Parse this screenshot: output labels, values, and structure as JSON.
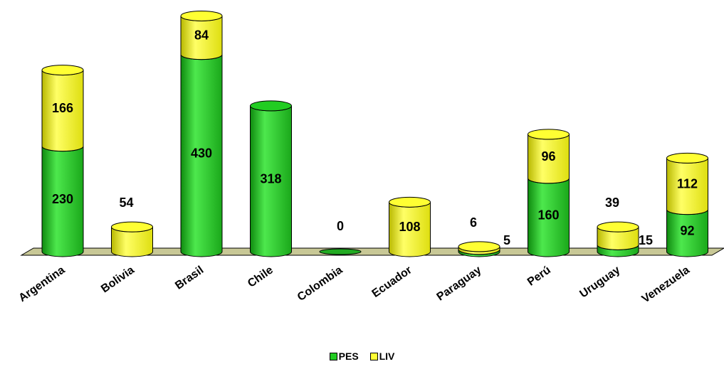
{
  "chart_data": {
    "type": "bar",
    "stacked": true,
    "style": "3d-cylinder",
    "categories": [
      "Argentina",
      "Bolivia",
      "Brasil",
      "Chile",
      "Colombia",
      "Ecuador",
      "Paraguay",
      "Perú",
      "Uruguay",
      "Venezuela"
    ],
    "series": [
      {
        "name": "PES",
        "color": "#22cc22",
        "values": [
          230,
          0,
          430,
          318,
          0,
          0,
          5,
          160,
          15,
          92
        ]
      },
      {
        "name": "LIV",
        "color": "#ffff33",
        "values": [
          166,
          54,
          84,
          0,
          0,
          108,
          6,
          96,
          39,
          112
        ]
      }
    ],
    "data_labels": [
      {
        "category": "Argentina",
        "series": "PES",
        "text": "230"
      },
      {
        "category": "Argentina",
        "series": "LIV",
        "text": "166"
      },
      {
        "category": "Bolivia",
        "series": "LIV",
        "text": "54"
      },
      {
        "category": "Brasil",
        "series": "PES",
        "text": "430"
      },
      {
        "category": "Brasil",
        "series": "LIV",
        "text": "84"
      },
      {
        "category": "Chile",
        "series": "PES",
        "text": "318"
      },
      {
        "category": "Colombia",
        "series": "PES",
        "text": "0"
      },
      {
        "category": "Ecuador",
        "series": "LIV",
        "text": "108"
      },
      {
        "category": "Paraguay",
        "series": "LIV",
        "text": "6"
      },
      {
        "category": "Paraguay",
        "series": "PES",
        "text": "5"
      },
      {
        "category": "Perú",
        "series": "PES",
        "text": "160"
      },
      {
        "category": "Perú",
        "series": "LIV",
        "text": "96"
      },
      {
        "category": "Uruguay",
        "series": "LIV",
        "text": "39"
      },
      {
        "category": "Uruguay",
        "series": "PES",
        "text": "15"
      },
      {
        "category": "Venezuela",
        "series": "PES",
        "text": "92"
      },
      {
        "category": "Venezuela",
        "series": "LIV",
        "text": "112"
      }
    ],
    "title": "",
    "xlabel": "",
    "ylabel": "",
    "ylim": [
      0,
      514
    ],
    "grid": false,
    "floor_color": "#c8c896",
    "legend_position": "bottom"
  }
}
